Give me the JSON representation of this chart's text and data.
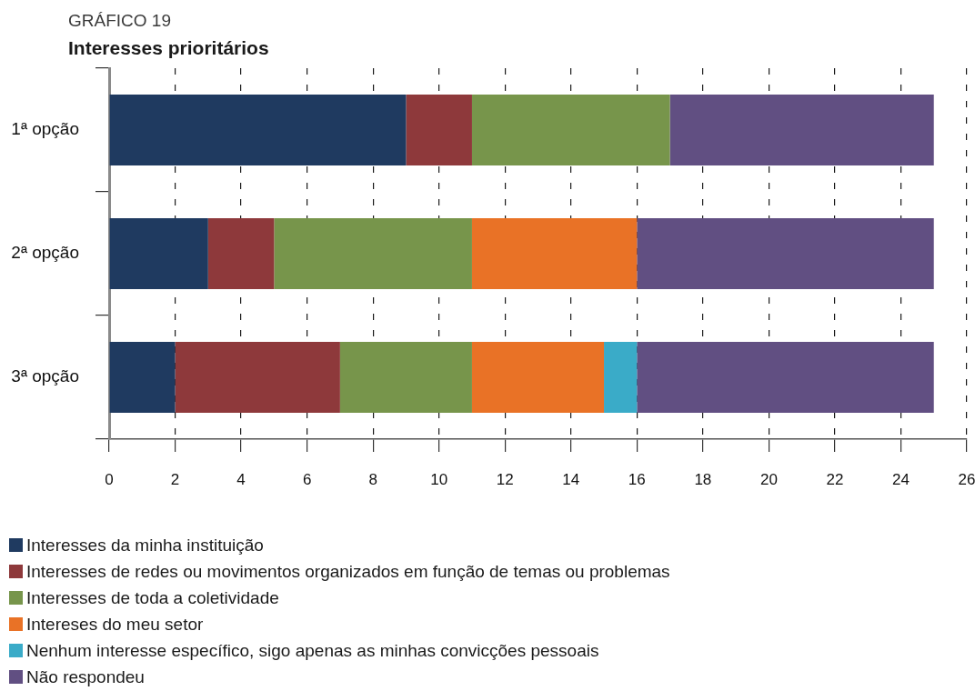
{
  "chart_data": {
    "type": "bar",
    "title": "GRÁFICO 19",
    "subtitle": "Interesses prioritários",
    "orientation": "horizontal",
    "stacked": true,
    "categories": [
      "1ª opção",
      "2ª opção",
      "3ª opção"
    ],
    "series": [
      {
        "name": "Interesses da minha instituição",
        "color": "#1f3a60",
        "values": [
          9,
          3,
          2
        ]
      },
      {
        "name": "Interesses de redes ou movimentos organizados em função de temas ou problemas",
        "color": "#8e393b",
        "values": [
          2,
          2,
          5
        ]
      },
      {
        "name": "Interesses de toda a coletividade",
        "color": "#77954b",
        "values": [
          6,
          6,
          4
        ]
      },
      {
        "name": "Intereses do meu setor",
        "color": "#e97226",
        "values": [
          0,
          5,
          4
        ]
      },
      {
        "name": "Nenhum interesse específico, sigo apenas as minhas convicções pessoais",
        "color": "#3aabc8",
        "values": [
          0,
          0,
          1
        ]
      },
      {
        "name": "Não respondeu",
        "color": "#614f82",
        "values": [
          8,
          9,
          9
        ]
      }
    ],
    "xlim": [
      0,
      26
    ],
    "xticks": [
      0,
      2,
      4,
      6,
      8,
      10,
      12,
      14,
      16,
      18,
      20,
      22,
      24,
      26
    ],
    "grid": "x",
    "legend": "bottom"
  }
}
